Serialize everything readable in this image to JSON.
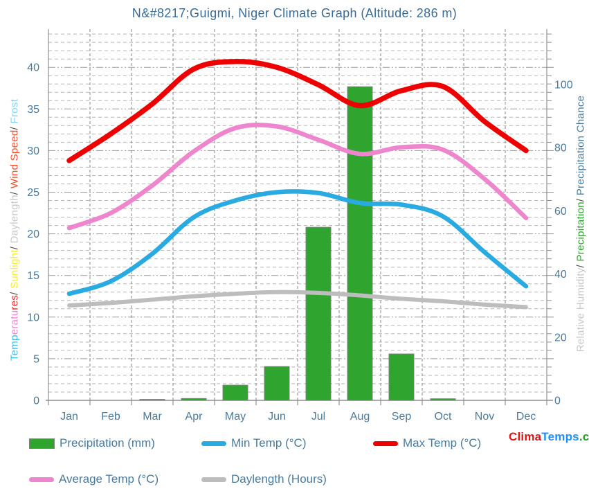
{
  "title": "N&#8217;Guigmi,  Niger Climate Graph (Altitude: 286 m)",
  "left_axis_title_segments": [
    {
      "text": "Temp",
      "color": "#3fb9e8"
    },
    {
      "text": "eratu",
      "color": "#ee86ce"
    },
    {
      "text": "res",
      "color": "#ee2222"
    },
    {
      "text": "/ ",
      "color": "#4a4a4a"
    },
    {
      "text": "Sunlight",
      "color": "#f6ee33"
    },
    {
      "text": "/ ",
      "color": "#4a4a4a"
    },
    {
      "text": "Daylength",
      "color": "#c9c9c9"
    },
    {
      "text": "/ ",
      "color": "#4a4a4a"
    },
    {
      "text": "Wind Speed",
      "color": "#ee5233"
    },
    {
      "text": "/ ",
      "color": "#4a4a4a"
    },
    {
      "text": "Frost",
      "color": "#7fd4f2"
    }
  ],
  "right_axis_title_segments": [
    {
      "text": "Relative Humidity",
      "color": "#c9c9c9"
    },
    {
      "text": "/ ",
      "color": "#4a4a4a"
    },
    {
      "text": "Precipitation",
      "color": "#2fa52f"
    },
    {
      "text": "/ ",
      "color": "#4a4a4a"
    },
    {
      "text": "Precipitation Chance",
      "color": "#4b7a9c"
    }
  ],
  "legend": {
    "items": [
      {
        "label": "Precipitation (mm)",
        "swatch": "bar",
        "color": "#2fa52f"
      },
      {
        "label": "Min Temp (°C)",
        "swatch": "line",
        "color": "#29abe2"
      },
      {
        "label": "Max Temp (°C)",
        "swatch": "line",
        "color": "#ee0000"
      },
      {
        "label": "Average Temp (°C)",
        "swatch": "line",
        "color": "#ee86ce"
      },
      {
        "label": "Daylength (Hours)",
        "swatch": "line",
        "color": "#bdbdbd"
      }
    ]
  },
  "logo": {
    "parts": [
      {
        "text": "Clima",
        "color": "#e61414"
      },
      {
        "text": "Temps",
        "color": "#1e90ff"
      },
      {
        "text": ".com",
        "color": "#1ba51b"
      }
    ]
  },
  "chart_data": {
    "type": "combo",
    "title": "N&#8217;Guigmi,  Niger Climate Graph (Altitude: 286 m)",
    "categories": [
      "Jan",
      "Feb",
      "Mar",
      "Apr",
      "May",
      "Jun",
      "Jul",
      "Aug",
      "Sep",
      "Oct",
      "Nov",
      "Dec"
    ],
    "series": [
      {
        "name": "Precipitation (mm)",
        "type": "bar",
        "axis": "right",
        "color": "#2fa52f",
        "border": "#808080",
        "values": [
          0,
          0,
          0.3,
          0.6,
          4.8,
          10.7,
          54.8,
          99.3,
          14.7,
          0.5,
          0,
          0
        ]
      },
      {
        "name": "Min Temp (°C)",
        "type": "line",
        "axis": "left",
        "color": "#29abe2",
        "width": 6.5,
        "values": [
          12.8,
          14.3,
          17.6,
          22.0,
          24.0,
          25.0,
          24.9,
          23.7,
          23.5,
          22.1,
          17.8,
          13.7
        ]
      },
      {
        "name": "Max Temp (°C)",
        "type": "line",
        "axis": "left",
        "color": "#ee0000",
        "width": 7.5,
        "values": [
          28.8,
          32.0,
          35.6,
          39.8,
          40.7,
          40.0,
          37.9,
          35.4,
          37.2,
          37.7,
          33.5,
          30.0
        ]
      },
      {
        "name": "Average Temp (°C)",
        "type": "line",
        "axis": "left",
        "color": "#ee86ce",
        "width": 6.5,
        "values": [
          20.7,
          22.5,
          25.8,
          29.9,
          32.7,
          32.9,
          31.3,
          29.6,
          30.4,
          30.1,
          26.6,
          21.9
        ]
      },
      {
        "name": "Daylength (Hours)",
        "type": "line",
        "axis": "left",
        "color": "#bdbdbd",
        "width": 6,
        "values": [
          11.4,
          11.7,
          12.1,
          12.5,
          12.8,
          13.0,
          12.9,
          12.6,
          12.2,
          11.9,
          11.5,
          11.2
        ]
      }
    ],
    "left_axis": {
      "ticks": [
        0,
        5,
        10,
        15,
        20,
        25,
        30,
        35,
        40
      ],
      "range": [
        0,
        44.4
      ],
      "minor_step": 1,
      "major_step": 5
    },
    "right_axis": {
      "ticks": [
        0,
        20,
        40,
        60,
        80,
        100
      ],
      "range": [
        0,
        117
      ]
    },
    "x_axis": {
      "labels": [
        "Jan",
        "Feb",
        "Mar",
        "Apr",
        "May",
        "Jun",
        "Jul",
        "Aug",
        "Sep",
        "Oct",
        "Nov",
        "Dec"
      ]
    },
    "grid": true,
    "legend_position": "bottom"
  }
}
